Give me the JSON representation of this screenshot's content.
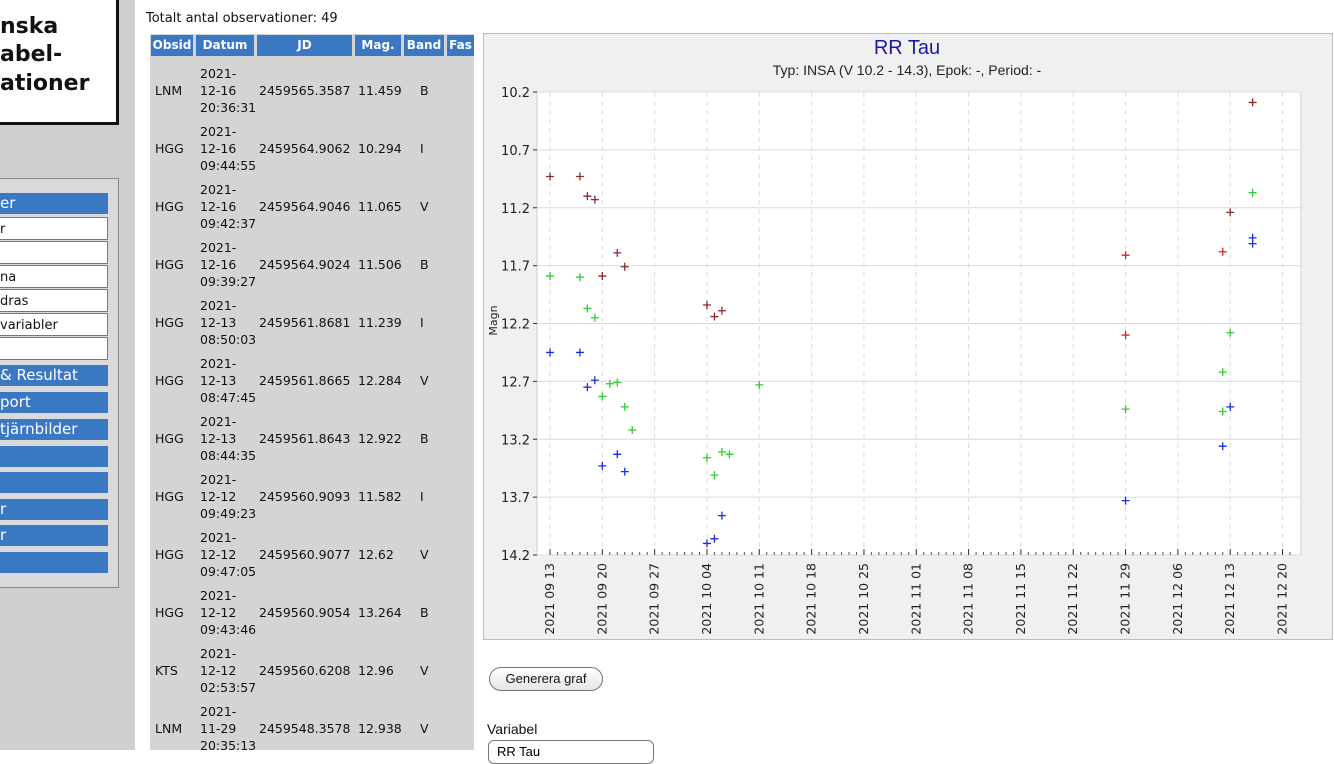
{
  "sidebar": {
    "logo_lines": [
      "nska",
      "abel-",
      "ationer"
    ],
    "menu": [
      {
        "label": "er",
        "kind": "blue"
      },
      {
        "label": "r",
        "kind": "white"
      },
      {
        "label": "",
        "kind": "white"
      },
      {
        "label": "na",
        "kind": "white"
      },
      {
        "label": "dras",
        "kind": "white"
      },
      {
        "label": "variabler",
        "kind": "white"
      },
      {
        "label": "",
        "kind": "white"
      },
      {
        "label": "& Resultat",
        "kind": "blue"
      },
      {
        "label": "port",
        "kind": "blue"
      },
      {
        "label": "tjärnbilder",
        "kind": "blue"
      },
      {
        "label": "",
        "kind": "blue"
      },
      {
        "label": "",
        "kind": "blue"
      },
      {
        "label": "r",
        "kind": "blue"
      },
      {
        "label": "r",
        "kind": "blue"
      },
      {
        "label": "",
        "kind": "blue"
      }
    ]
  },
  "summary": {
    "total_label": "Totalt antal observationer: 49"
  },
  "table": {
    "headers": [
      "Obsid",
      "Datum",
      "JD",
      "Mag.",
      "Band",
      "Fas"
    ],
    "rows": [
      {
        "obsid": "LNM",
        "date": [
          "2021-",
          "12-16",
          "20:36:31"
        ],
        "jd": "2459565.3587",
        "mag": "11.459",
        "band": "B"
      },
      {
        "obsid": "HGG",
        "date": [
          "2021-",
          "12-16",
          "09:44:55"
        ],
        "jd": "2459564.9062",
        "mag": "10.294",
        "band": "I"
      },
      {
        "obsid": "HGG",
        "date": [
          "2021-",
          "12-16",
          "09:42:37"
        ],
        "jd": "2459564.9046",
        "mag": "11.065",
        "band": "V"
      },
      {
        "obsid": "HGG",
        "date": [
          "2021-",
          "12-16",
          "09:39:27"
        ],
        "jd": "2459564.9024",
        "mag": "11.506",
        "band": "B"
      },
      {
        "obsid": "HGG",
        "date": [
          "2021-",
          "12-13",
          "08:50:03"
        ],
        "jd": "2459561.8681",
        "mag": "11.239",
        "band": "I"
      },
      {
        "obsid": "HGG",
        "date": [
          "2021-",
          "12-13",
          "08:47:45"
        ],
        "jd": "2459561.8665",
        "mag": "12.284",
        "band": "V"
      },
      {
        "obsid": "HGG",
        "date": [
          "2021-",
          "12-13",
          "08:44:35"
        ],
        "jd": "2459561.8643",
        "mag": "12.922",
        "band": "B"
      },
      {
        "obsid": "HGG",
        "date": [
          "2021-",
          "12-12",
          "09:49:23"
        ],
        "jd": "2459560.9093",
        "mag": "11.582",
        "band": "I"
      },
      {
        "obsid": "HGG",
        "date": [
          "2021-",
          "12-12",
          "09:47:05"
        ],
        "jd": "2459560.9077",
        "mag": "12.62",
        "band": "V"
      },
      {
        "obsid": "HGG",
        "date": [
          "2021-",
          "12-12",
          "09:43:46"
        ],
        "jd": "2459560.9054",
        "mag": "13.264",
        "band": "B"
      },
      {
        "obsid": "KTS",
        "date": [
          "2021-",
          "12-12",
          "02:53:57"
        ],
        "jd": "2459560.6208",
        "mag": "12.96",
        "band": "V"
      },
      {
        "obsid": "LNM",
        "date": [
          "2021-",
          "11-29",
          "20:35:13"
        ],
        "jd": "2459548.3578",
        "mag": "12.938",
        "band": "V"
      }
    ]
  },
  "chart_data": {
    "type": "scatter",
    "title": "RR Tau",
    "subtitle": "Typ: INSA (V 10.2 - 14.3), Epok: -, Period: -",
    "ylabel": "Magn",
    "ylim": [
      10.2,
      14.2
    ],
    "y_inverted": true,
    "yticks": [
      "10.2",
      "10.7",
      "11.2",
      "11.7",
      "12.2",
      "12.7",
      "13.2",
      "13.7",
      "14.2"
    ],
    "xlim": [
      "2021-09-13",
      "2021-12-21"
    ],
    "xticks": [
      "2021 09 13",
      "2021 09 20",
      "2021 09 27",
      "2021 10 04",
      "2021 10 11",
      "2021 10 18",
      "2021 10 25",
      "2021 11 01",
      "2021 11 08",
      "2021 11 15",
      "2021 11 22",
      "2021 11 29",
      "2021 12 06",
      "2021 12 13",
      "2021 12 20"
    ],
    "grid": true,
    "series": [
      {
        "color": "#8b2a2a",
        "points": [
          {
            "x": "2021-09-13",
            "y": 10.93
          },
          {
            "x": "2021-09-17",
            "y": 10.93
          },
          {
            "x": "2021-09-18",
            "y": 11.1
          },
          {
            "x": "2021-09-19",
            "y": 11.13
          },
          {
            "x": "2021-09-20",
            "y": 11.79
          },
          {
            "x": "2021-09-22",
            "y": 11.59
          },
          {
            "x": "2021-09-23",
            "y": 11.71
          },
          {
            "x": "2021-10-04",
            "y": 12.04
          },
          {
            "x": "2021-10-05",
            "y": 12.14
          },
          {
            "x": "2021-10-06",
            "y": 12.09
          },
          {
            "x": "2021-12-13",
            "y": 11.24
          },
          {
            "x": "2021-12-16",
            "y": 10.29
          }
        ]
      },
      {
        "color": "#e02020",
        "points": [
          {
            "x": "2021-11-29",
            "y": 11.61
          },
          {
            "x": "2021-11-29",
            "y": 12.3
          },
          {
            "x": "2021-12-12",
            "y": 11.58
          }
        ]
      },
      {
        "color": "#33cc33",
        "points": [
          {
            "x": "2021-09-13",
            "y": 11.79
          },
          {
            "x": "2021-09-17",
            "y": 11.8
          },
          {
            "x": "2021-09-18",
            "y": 12.07
          },
          {
            "x": "2021-09-19",
            "y": 12.15
          },
          {
            "x": "2021-09-20",
            "y": 12.83
          },
          {
            "x": "2021-09-21",
            "y": 12.72
          },
          {
            "x": "2021-09-22",
            "y": 12.71
          },
          {
            "x": "2021-09-23",
            "y": 12.92
          },
          {
            "x": "2021-09-24",
            "y": 13.12
          },
          {
            "x": "2021-10-04",
            "y": 13.36
          },
          {
            "x": "2021-10-05",
            "y": 13.51
          },
          {
            "x": "2021-10-06",
            "y": 13.31
          },
          {
            "x": "2021-10-07",
            "y": 13.33
          },
          {
            "x": "2021-10-11",
            "y": 12.73
          },
          {
            "x": "2021-11-29",
            "y": 12.94
          },
          {
            "x": "2021-12-12",
            "y": 12.96
          },
          {
            "x": "2021-12-12",
            "y": 12.62
          },
          {
            "x": "2021-12-13",
            "y": 12.28
          },
          {
            "x": "2021-12-16",
            "y": 11.07
          }
        ]
      },
      {
        "color": "#1a2ee0",
        "points": [
          {
            "x": "2021-09-13",
            "y": 12.45
          },
          {
            "x": "2021-09-17",
            "y": 12.45
          },
          {
            "x": "2021-09-18",
            "y": 12.75
          },
          {
            "x": "2021-09-19",
            "y": 12.69
          },
          {
            "x": "2021-09-20",
            "y": 13.43
          },
          {
            "x": "2021-09-22",
            "y": 13.33
          },
          {
            "x": "2021-09-23",
            "y": 13.48
          },
          {
            "x": "2021-10-04",
            "y": 14.1
          },
          {
            "x": "2021-10-05",
            "y": 14.06
          },
          {
            "x": "2021-10-06",
            "y": 13.86
          },
          {
            "x": "2021-11-29",
            "y": 13.73
          },
          {
            "x": "2021-12-12",
            "y": 13.26
          },
          {
            "x": "2021-12-13",
            "y": 12.92
          },
          {
            "x": "2021-12-16",
            "y": 11.51
          },
          {
            "x": "2021-12-16",
            "y": 11.46
          }
        ]
      }
    ]
  },
  "controls": {
    "generate_label": "Generera graf",
    "variable_label": "Variabel",
    "variable_value": "RR Tau"
  }
}
